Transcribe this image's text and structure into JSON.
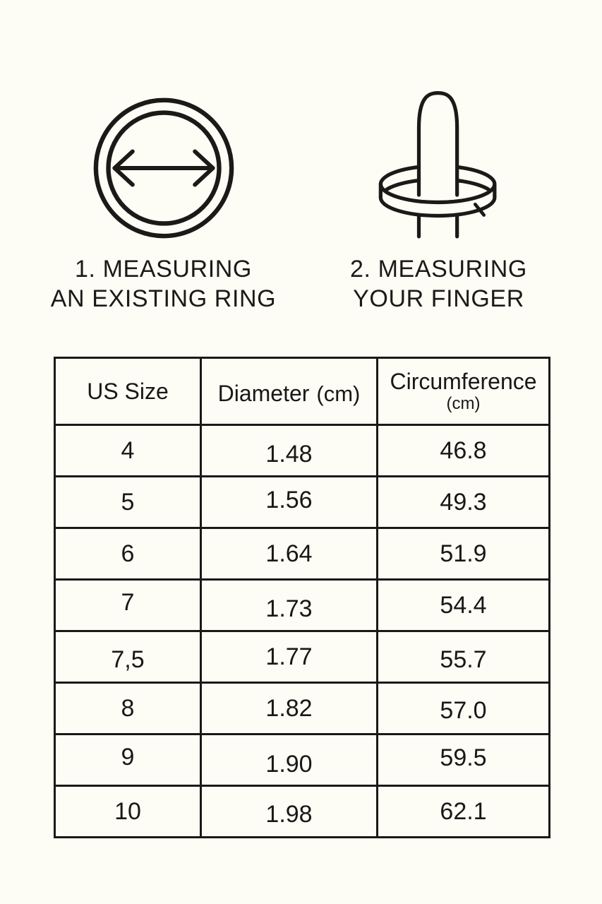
{
  "page": {
    "background": "#fdfcf5",
    "ink": "#1b1917"
  },
  "figures": [
    {
      "icon": "ring-diameter-icon",
      "caption_line1": "1. MEASURING",
      "caption_line2": "AN EXISTING RING"
    },
    {
      "icon": "finger-ring-icon",
      "caption_line1": "2. MEASURING",
      "caption_line2": "YOUR FINGER"
    }
  ],
  "chart_data": {
    "type": "table",
    "columns": [
      {
        "label": "US Size",
        "unit": "",
        "unit_layout": "none"
      },
      {
        "label": "Diameter",
        "unit": "(cm)",
        "unit_layout": "inline"
      },
      {
        "label": "Circumference",
        "unit": "(cm)",
        "unit_layout": "stacked"
      }
    ],
    "rows": [
      [
        "4",
        "1.48",
        "46.8"
      ],
      [
        "5",
        "1.56",
        "49.3"
      ],
      [
        "6",
        "1.64",
        "51.9"
      ],
      [
        "7",
        "1.73",
        "54.4"
      ],
      [
        "7,5",
        "1.77",
        "55.7"
      ],
      [
        "8",
        "1.82",
        "57.0"
      ],
      [
        "9",
        "1.90",
        "59.5"
      ],
      [
        "10",
        "1.98",
        "62.1"
      ]
    ]
  }
}
